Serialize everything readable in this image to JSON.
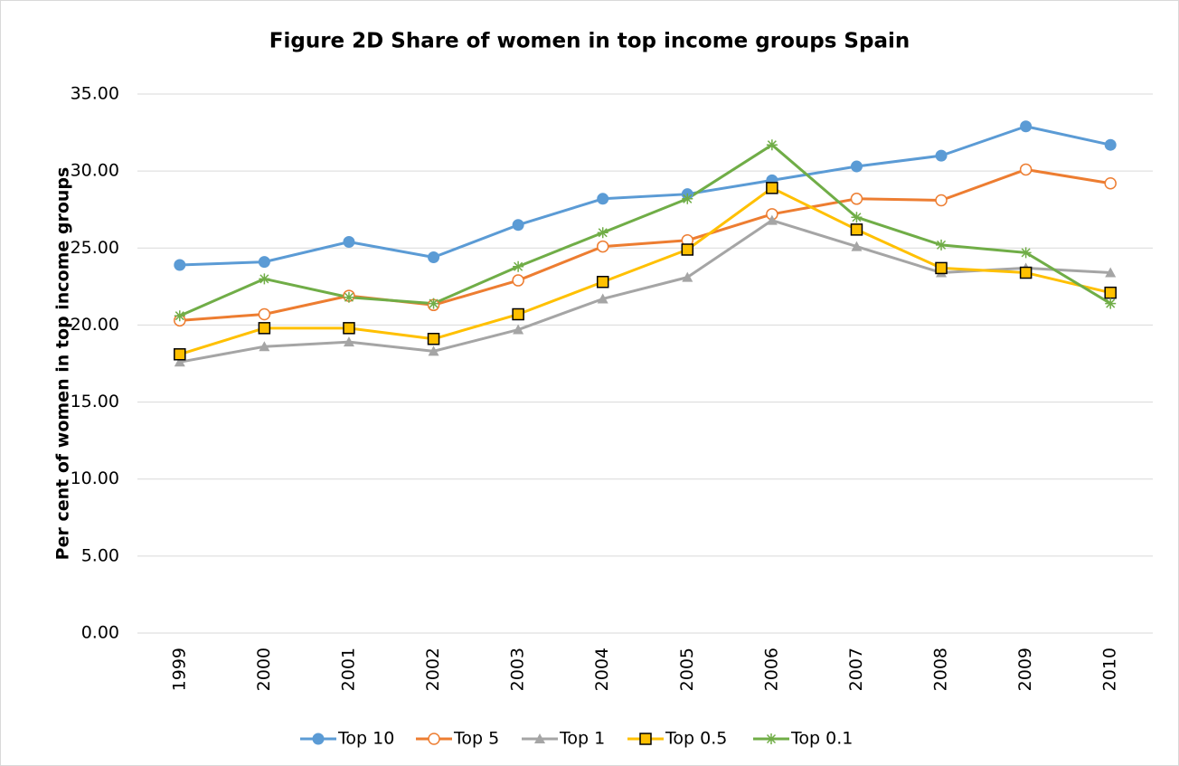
{
  "chart_data": {
    "type": "line",
    "title": "Figure 2D Share of women in top income groups Spain",
    "y_label": "Per cent of women in top income groups",
    "categories": [
      "1999",
      "2000",
      "2001",
      "2002",
      "2003",
      "2004",
      "2005",
      "2006",
      "2007",
      "2008",
      "2009",
      "2010"
    ],
    "ylim": [
      0,
      35
    ],
    "yticks": [
      {
        "value": 0,
        "label": "0.00"
      },
      {
        "value": 5,
        "label": "5.00"
      },
      {
        "value": 10,
        "label": "10.00"
      },
      {
        "value": 15,
        "label": "15.00"
      },
      {
        "value": 20,
        "label": "20.00"
      },
      {
        "value": 25,
        "label": "25.00"
      },
      {
        "value": 30,
        "label": "30.00"
      },
      {
        "value": 35,
        "label": "35.00"
      }
    ],
    "grid": true,
    "legend": "bottom",
    "series": [
      {
        "name": "Top 10",
        "color": "#5b9bd5",
        "marker": "circle",
        "values": [
          23.9,
          24.1,
          25.4,
          24.4,
          26.5,
          28.2,
          28.5,
          29.4,
          30.3,
          31.0,
          32.9,
          31.7
        ]
      },
      {
        "name": "Top 5",
        "color": "#ed7d31",
        "marker": "hollow-circle",
        "values": [
          20.3,
          20.7,
          21.9,
          21.3,
          22.9,
          25.1,
          25.5,
          27.2,
          28.2,
          28.1,
          30.1,
          29.2
        ]
      },
      {
        "name": "Top 1",
        "color": "#a5a5a5",
        "marker": "triangle",
        "values": [
          17.6,
          18.6,
          18.9,
          18.3,
          19.7,
          21.7,
          23.1,
          26.8,
          25.1,
          23.4,
          23.7,
          23.4
        ]
      },
      {
        "name": "Top 0.5",
        "color": "#ffc000",
        "marker": "square",
        "values": [
          18.1,
          19.8,
          19.8,
          19.1,
          20.7,
          22.8,
          24.9,
          28.9,
          26.2,
          23.7,
          23.4,
          22.1
        ]
      },
      {
        "name": "Top 0.1",
        "color": "#70ad47",
        "marker": "star",
        "values": [
          20.6,
          23.0,
          21.8,
          21.4,
          23.8,
          26.0,
          28.2,
          31.7,
          27.0,
          25.2,
          24.7,
          21.4
        ]
      }
    ]
  }
}
